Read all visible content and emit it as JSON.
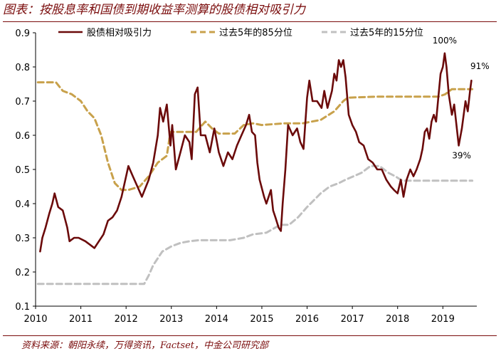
{
  "header": {
    "title": "图表：按股息率和国债到期收益率测算的股债相对吸引力"
  },
  "footer": {
    "source": "资料来源：朝阳永续，万得资讯，Factset，中金公司研究部"
  },
  "chart_data": {
    "type": "line",
    "title": "图表：按股息率和国债到期收益率测算的股债相对吸引力",
    "xlabel": "",
    "ylabel": "",
    "xlim": [
      2010,
      2019.75
    ],
    "ylim": [
      0.1,
      0.9
    ],
    "x_ticks": [
      2010,
      2011,
      2012,
      2013,
      2014,
      2015,
      2016,
      2017,
      2018,
      2019
    ],
    "y_ticks": [
      0.1,
      0.2,
      0.3,
      0.4,
      0.5,
      0.6,
      0.7,
      0.8,
      0.9
    ],
    "legend_position": "top",
    "grid": false,
    "series": [
      {
        "name": "股债相对吸引力",
        "style": "solid",
        "color": "#6b0a0a",
        "points": [
          [
            2010.1,
            0.26
          ],
          [
            2010.15,
            0.3
          ],
          [
            2010.22,
            0.33
          ],
          [
            2010.3,
            0.37
          ],
          [
            2010.37,
            0.4
          ],
          [
            2010.42,
            0.43
          ],
          [
            2010.5,
            0.39
          ],
          [
            2010.6,
            0.38
          ],
          [
            2010.7,
            0.33
          ],
          [
            2010.75,
            0.29
          ],
          [
            2010.85,
            0.3
          ],
          [
            2010.95,
            0.3
          ],
          [
            2011.1,
            0.29
          ],
          [
            2011.2,
            0.28
          ],
          [
            2011.3,
            0.27
          ],
          [
            2011.4,
            0.29
          ],
          [
            2011.5,
            0.31
          ],
          [
            2011.6,
            0.35
          ],
          [
            2011.7,
            0.36
          ],
          [
            2011.8,
            0.38
          ],
          [
            2011.9,
            0.42
          ],
          [
            2012.0,
            0.48
          ],
          [
            2012.05,
            0.51
          ],
          [
            2012.15,
            0.48
          ],
          [
            2012.25,
            0.45
          ],
          [
            2012.35,
            0.42
          ],
          [
            2012.5,
            0.47
          ],
          [
            2012.6,
            0.52
          ],
          [
            2012.7,
            0.6
          ],
          [
            2012.75,
            0.68
          ],
          [
            2012.82,
            0.64
          ],
          [
            2012.9,
            0.69
          ],
          [
            2012.98,
            0.57
          ],
          [
            2013.02,
            0.63
          ],
          [
            2013.1,
            0.5
          ],
          [
            2013.2,
            0.55
          ],
          [
            2013.3,
            0.6
          ],
          [
            2013.4,
            0.58
          ],
          [
            2013.45,
            0.53
          ],
          [
            2013.52,
            0.72
          ],
          [
            2013.58,
            0.74
          ],
          [
            2013.65,
            0.6
          ],
          [
            2013.75,
            0.6
          ],
          [
            2013.85,
            0.55
          ],
          [
            2013.95,
            0.62
          ],
          [
            2014.05,
            0.55
          ],
          [
            2014.15,
            0.51
          ],
          [
            2014.25,
            0.55
          ],
          [
            2014.35,
            0.53
          ],
          [
            2014.45,
            0.57
          ],
          [
            2014.55,
            0.6
          ],
          [
            2014.65,
            0.63
          ],
          [
            2014.72,
            0.66
          ],
          [
            2014.78,
            0.61
          ],
          [
            2014.85,
            0.6
          ],
          [
            2014.9,
            0.52
          ],
          [
            2014.95,
            0.47
          ],
          [
            2015.05,
            0.42
          ],
          [
            2015.1,
            0.4
          ],
          [
            2015.2,
            0.44
          ],
          [
            2015.25,
            0.38
          ],
          [
            2015.3,
            0.36
          ],
          [
            2015.37,
            0.33
          ],
          [
            2015.42,
            0.32
          ],
          [
            2015.46,
            0.4
          ],
          [
            2015.52,
            0.5
          ],
          [
            2015.58,
            0.63
          ],
          [
            2015.68,
            0.6
          ],
          [
            2015.78,
            0.62
          ],
          [
            2015.85,
            0.58
          ],
          [
            2015.92,
            0.56
          ],
          [
            2016.0,
            0.71
          ],
          [
            2016.05,
            0.76
          ],
          [
            2016.12,
            0.7
          ],
          [
            2016.22,
            0.7
          ],
          [
            2016.32,
            0.68
          ],
          [
            2016.38,
            0.73
          ],
          [
            2016.45,
            0.68
          ],
          [
            2016.55,
            0.73
          ],
          [
            2016.6,
            0.78
          ],
          [
            2016.65,
            0.76
          ],
          [
            2016.7,
            0.82
          ],
          [
            2016.75,
            0.8
          ],
          [
            2016.8,
            0.82
          ],
          [
            2016.85,
            0.77
          ],
          [
            2016.92,
            0.66
          ],
          [
            2017.0,
            0.63
          ],
          [
            2017.08,
            0.61
          ],
          [
            2017.15,
            0.58
          ],
          [
            2017.25,
            0.57
          ],
          [
            2017.35,
            0.53
          ],
          [
            2017.45,
            0.52
          ],
          [
            2017.55,
            0.5
          ],
          [
            2017.65,
            0.5
          ],
          [
            2017.75,
            0.47
          ],
          [
            2017.85,
            0.45
          ],
          [
            2017.92,
            0.44
          ],
          [
            2018.0,
            0.43
          ],
          [
            2018.07,
            0.47
          ],
          [
            2018.13,
            0.42
          ],
          [
            2018.2,
            0.47
          ],
          [
            2018.28,
            0.5
          ],
          [
            2018.35,
            0.48
          ],
          [
            2018.42,
            0.5
          ],
          [
            2018.5,
            0.53
          ],
          [
            2018.55,
            0.56
          ],
          [
            2018.6,
            0.61
          ],
          [
            2018.65,
            0.62
          ],
          [
            2018.7,
            0.59
          ],
          [
            2018.75,
            0.64
          ],
          [
            2018.8,
            0.66
          ],
          [
            2018.85,
            0.64
          ],
          [
            2018.9,
            0.71
          ],
          [
            2018.95,
            0.78
          ],
          [
            2019.0,
            0.8
          ],
          [
            2019.04,
            0.84
          ],
          [
            2019.08,
            0.8
          ],
          [
            2019.13,
            0.72
          ],
          [
            2019.2,
            0.66
          ],
          [
            2019.25,
            0.69
          ],
          [
            2019.3,
            0.63
          ],
          [
            2019.35,
            0.57
          ],
          [
            2019.42,
            0.62
          ],
          [
            2019.5,
            0.7
          ],
          [
            2019.55,
            0.67
          ],
          [
            2019.6,
            0.73
          ],
          [
            2019.63,
            0.76
          ]
        ]
      },
      {
        "name": "过去5年的85分位",
        "style": "dashed",
        "color": "#c8a14b",
        "points": [
          [
            2010.05,
            0.755
          ],
          [
            2010.45,
            0.755
          ],
          [
            2010.6,
            0.73
          ],
          [
            2010.8,
            0.72
          ],
          [
            2011.0,
            0.7
          ],
          [
            2011.15,
            0.67
          ],
          [
            2011.3,
            0.65
          ],
          [
            2011.45,
            0.6
          ],
          [
            2011.6,
            0.52
          ],
          [
            2011.75,
            0.46
          ],
          [
            2011.9,
            0.44
          ],
          [
            2012.05,
            0.44
          ],
          [
            2012.3,
            0.45
          ],
          [
            2012.5,
            0.48
          ],
          [
            2012.7,
            0.52
          ],
          [
            2012.9,
            0.54
          ],
          [
            2012.98,
            0.61
          ],
          [
            2013.55,
            0.61
          ],
          [
            2013.75,
            0.64
          ],
          [
            2013.9,
            0.62
          ],
          [
            2014.05,
            0.605
          ],
          [
            2014.4,
            0.605
          ],
          [
            2014.6,
            0.63
          ],
          [
            2014.8,
            0.635
          ],
          [
            2015.0,
            0.63
          ],
          [
            2015.5,
            0.635
          ],
          [
            2015.9,
            0.635
          ],
          [
            2016.1,
            0.64
          ],
          [
            2016.3,
            0.645
          ],
          [
            2016.6,
            0.67
          ],
          [
            2016.8,
            0.7
          ],
          [
            2016.9,
            0.71
          ],
          [
            2017.5,
            0.713
          ],
          [
            2018.0,
            0.713
          ],
          [
            2018.5,
            0.713
          ],
          [
            2018.9,
            0.713
          ],
          [
            2019.05,
            0.72
          ],
          [
            2019.2,
            0.735
          ],
          [
            2019.65,
            0.735
          ]
        ]
      },
      {
        "name": "过去5年的15分位",
        "style": "dashed",
        "color": "#c0c0c0",
        "points": [
          [
            2010.05,
            0.165
          ],
          [
            2012.4,
            0.165
          ],
          [
            2012.5,
            0.19
          ],
          [
            2012.6,
            0.22
          ],
          [
            2012.8,
            0.26
          ],
          [
            2013.0,
            0.275
          ],
          [
            2013.2,
            0.285
          ],
          [
            2013.4,
            0.29
          ],
          [
            2013.6,
            0.293
          ],
          [
            2014.3,
            0.293
          ],
          [
            2014.6,
            0.3
          ],
          [
            2014.8,
            0.31
          ],
          [
            2015.1,
            0.315
          ],
          [
            2015.3,
            0.33
          ],
          [
            2015.4,
            0.338
          ],
          [
            2015.6,
            0.338
          ],
          [
            2015.8,
            0.36
          ],
          [
            2016.0,
            0.39
          ],
          [
            2016.3,
            0.43
          ],
          [
            2016.5,
            0.45
          ],
          [
            2016.7,
            0.46
          ],
          [
            2016.85,
            0.47
          ],
          [
            2017.2,
            0.49
          ],
          [
            2017.4,
            0.51
          ],
          [
            2017.6,
            0.51
          ],
          [
            2017.8,
            0.49
          ],
          [
            2017.95,
            0.48
          ],
          [
            2018.1,
            0.467
          ],
          [
            2018.6,
            0.467
          ],
          [
            2019.65,
            0.467
          ]
        ]
      }
    ],
    "annotations": [
      {
        "text": "100%",
        "x": 2019.04,
        "y": 0.84
      },
      {
        "text": "91%",
        "x": 2019.63,
        "y": 0.76
      },
      {
        "text": "39%",
        "x": 2019.35,
        "y": 0.57
      }
    ]
  }
}
